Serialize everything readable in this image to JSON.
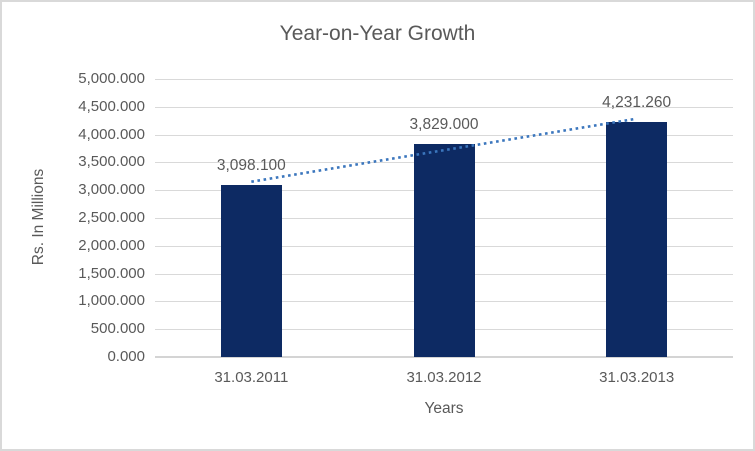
{
  "chart_data": {
    "type": "bar",
    "title": "Year-on-Year Growth",
    "xlabel": "Years",
    "ylabel": "Rs. In Millions",
    "categories": [
      "31.03.2011",
      "31.03.2012",
      "31.03.2013"
    ],
    "values": [
      3098.1,
      3829.0,
      4231.26
    ],
    "data_labels": [
      "3,098.100",
      "3,829.000",
      "4,231.260"
    ],
    "ytick_values": [
      0,
      500,
      1000,
      1500,
      2000,
      2500,
      3000,
      3500,
      4000,
      4500,
      5000
    ],
    "ytick_labels": [
      "0.000",
      "500.000",
      "1,000.000",
      "1,500.000",
      "2,000.000",
      "2,500.000",
      "3,000.000",
      "3,500.000",
      "4,000.000",
      "4,500.000",
      "5,000.000"
    ],
    "ylim": [
      0,
      5000
    ],
    "grid": true,
    "legend": "none",
    "trendline": {
      "type": "linear",
      "style": "dotted",
      "color": "#3b76bd"
    },
    "colors": {
      "bar": "#0d2a63",
      "gridline": "#d9d9d9",
      "text": "#595959",
      "frame_border": "#d9d9d9"
    }
  }
}
